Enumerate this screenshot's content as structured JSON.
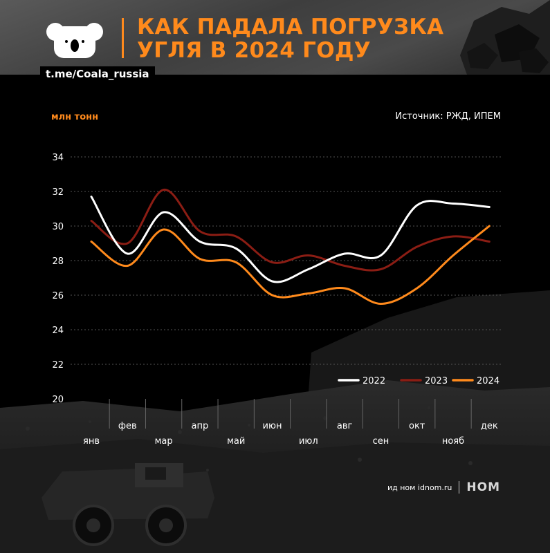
{
  "header": {
    "title_line1": "КАК ПАДАЛА ПОГРУЗКА",
    "title_line2": "УГЛЯ В 2024 ГОДУ",
    "channel": "t.me/Coala_russia"
  },
  "unit_label": "млн тонн",
  "source": "Источник: РЖД, ИПЕМ",
  "footer": {
    "brand_text": "ид ном idnom.ru",
    "logo_text": "НОМ"
  },
  "colors": {
    "accent": "#ff8a1c",
    "series_2022": "#ffffff",
    "series_2023": "#8b1d14",
    "series_2024": "#ff8a1c"
  },
  "chart_data": {
    "type": "line",
    "xlabel": "",
    "ylabel": "млн тонн",
    "categories": [
      "янв",
      "фев",
      "мар",
      "апр",
      "май",
      "июн",
      "июл",
      "авг",
      "сен",
      "окт",
      "нояб",
      "дек"
    ],
    "ylim": [
      20,
      34
    ],
    "yticks": [
      20,
      22,
      24,
      26,
      28,
      30,
      32,
      34
    ],
    "grid": true,
    "legend_position": "bottom-right",
    "series": [
      {
        "name": "2022",
        "color": "#ffffff",
        "values": [
          31.7,
          28.4,
          30.8,
          29.1,
          28.7,
          26.8,
          27.5,
          28.4,
          28.3,
          31.2,
          31.3,
          31.1
        ]
      },
      {
        "name": "2023",
        "color": "#8b1d14",
        "values": [
          30.3,
          29.0,
          32.1,
          29.7,
          29.4,
          27.9,
          28.3,
          27.7,
          27.5,
          28.8,
          29.4,
          29.1
        ]
      },
      {
        "name": "2024",
        "color": "#ff8a1c",
        "values": [
          29.1,
          27.7,
          29.8,
          28.1,
          27.9,
          26.0,
          26.1,
          26.4,
          25.5,
          26.4,
          28.3,
          30.0
        ]
      }
    ]
  }
}
